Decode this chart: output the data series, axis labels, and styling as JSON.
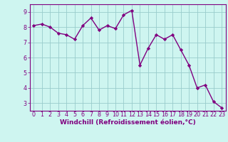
{
  "x": [
    0,
    1,
    2,
    3,
    4,
    5,
    6,
    7,
    8,
    9,
    10,
    11,
    12,
    13,
    14,
    15,
    16,
    17,
    18,
    19,
    20,
    21,
    22,
    23
  ],
  "y": [
    8.1,
    8.2,
    8.0,
    7.6,
    7.5,
    7.2,
    8.1,
    8.6,
    7.8,
    8.1,
    7.9,
    8.8,
    9.1,
    5.5,
    6.6,
    7.5,
    7.2,
    7.5,
    6.5,
    5.5,
    4.0,
    4.2,
    3.1,
    2.7
  ],
  "line_color": "#800080",
  "marker": "D",
  "marker_size": 2.2,
  "linewidth": 1.0,
  "xlabel": "Windchill (Refroidissement éolien,°C)",
  "xlabel_fontsize": 6.5,
  "background_color": "#cef5f0",
  "grid_color": "#99cccc",
  "ylim": [
    2.5,
    9.5
  ],
  "xlim": [
    -0.5,
    23.5
  ],
  "yticks": [
    3,
    4,
    5,
    6,
    7,
    8,
    9
  ],
  "xticks": [
    0,
    1,
    2,
    3,
    4,
    5,
    6,
    7,
    8,
    9,
    10,
    11,
    12,
    13,
    14,
    15,
    16,
    17,
    18,
    19,
    20,
    21,
    22,
    23
  ],
  "tick_fontsize": 5.8,
  "axis_label_color": "#800080",
  "tick_label_color": "#800080",
  "spine_color": "#800080"
}
